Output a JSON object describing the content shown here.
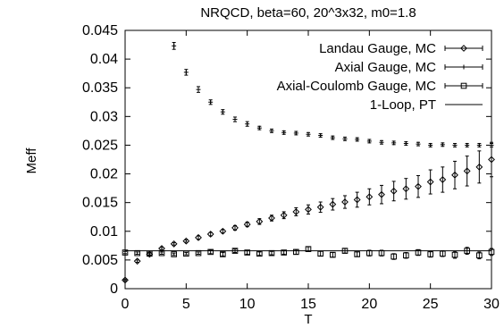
{
  "chart_data": {
    "type": "scatter",
    "title": "NRQCD, beta=60, 20^3x32, m0=1.8",
    "xlabel": "T",
    "ylabel": "Meff",
    "xlim": [
      0,
      30
    ],
    "ylim": [
      0,
      0.045
    ],
    "xticks": [
      "0",
      "5",
      "10",
      "15",
      "20",
      "25",
      "30"
    ],
    "yticks": [
      "0",
      "0.005",
      "0.01",
      "0.015",
      "0.02",
      "0.025",
      "0.03",
      "0.035",
      "0.04",
      "0.045"
    ],
    "grid": false,
    "legend_position": "top-right",
    "series": [
      {
        "name": "Landau Gauge, MC",
        "marker": "diamond",
        "x": [
          0,
          1,
          2,
          3,
          4,
          5,
          6,
          7,
          8,
          9,
          10,
          11,
          12,
          13,
          14,
          15,
          16,
          17,
          18,
          19,
          20,
          21,
          22,
          23,
          24,
          25,
          26,
          27,
          28,
          29,
          30
        ],
        "y": [
          0.0015,
          0.0048,
          0.006,
          0.007,
          0.0078,
          0.0083,
          0.0089,
          0.0095,
          0.01,
          0.0106,
          0.0112,
          0.0117,
          0.0123,
          0.0128,
          0.0134,
          0.0138,
          0.0142,
          0.0147,
          0.0151,
          0.0155,
          0.016,
          0.0164,
          0.017,
          0.0174,
          0.0178,
          0.0186,
          0.019,
          0.0198,
          0.0205,
          0.0212,
          0.0225
        ],
        "err": [
          0.0001,
          0.0002,
          0.0002,
          0.0002,
          0.0002,
          0.0002,
          0.0003,
          0.0003,
          0.0003,
          0.0004,
          0.0004,
          0.0005,
          0.0005,
          0.0006,
          0.0007,
          0.0008,
          0.0009,
          0.001,
          0.0011,
          0.0013,
          0.0014,
          0.0016,
          0.0017,
          0.0018,
          0.0019,
          0.0021,
          0.0022,
          0.0024,
          0.0026,
          0.0028,
          0.003
        ]
      },
      {
        "name": "Axial Gauge, MC",
        "marker": "plus",
        "x": [
          4,
          5,
          6,
          7,
          8,
          9,
          10,
          11,
          12,
          13,
          14,
          15,
          16,
          17,
          18,
          19,
          20,
          21,
          22,
          23,
          24,
          25,
          26,
          27,
          28,
          29,
          30
        ],
        "y": [
          0.0423,
          0.0377,
          0.0347,
          0.0325,
          0.0308,
          0.0295,
          0.0287,
          0.028,
          0.0275,
          0.0272,
          0.0271,
          0.0269,
          0.0267,
          0.0263,
          0.0261,
          0.026,
          0.0257,
          0.0255,
          0.0254,
          0.0253,
          0.0252,
          0.025,
          0.0251,
          0.025,
          0.025,
          0.025,
          0.025
        ],
        "err": [
          0.0006,
          0.0005,
          0.0005,
          0.0004,
          0.0004,
          0.0004,
          0.0004,
          0.0003,
          0.0003,
          0.0003,
          0.0003,
          0.0003,
          0.0003,
          0.0003,
          0.0003,
          0.0003,
          0.0003,
          0.0003,
          0.0003,
          0.0003,
          0.0003,
          0.0003,
          0.0003,
          0.0003,
          0.0003,
          0.0003,
          0.0003
        ]
      },
      {
        "name": "Axial-Coulomb Gauge, MC",
        "marker": "square",
        "x": [
          0,
          1,
          2,
          3,
          4,
          5,
          6,
          7,
          8,
          9,
          10,
          11,
          12,
          13,
          14,
          15,
          16,
          17,
          18,
          19,
          20,
          21,
          22,
          23,
          24,
          25,
          26,
          27,
          28,
          29,
          30
        ],
        "y": [
          0.0063,
          0.0062,
          0.0061,
          0.0062,
          0.006,
          0.0061,
          0.0062,
          0.0064,
          0.006,
          0.0066,
          0.0063,
          0.0061,
          0.0062,
          0.0063,
          0.0064,
          0.0069,
          0.0061,
          0.0059,
          0.0066,
          0.006,
          0.0062,
          0.0062,
          0.0056,
          0.0058,
          0.0063,
          0.006,
          0.0061,
          0.0059,
          0.0066,
          0.0058,
          0.0064
        ],
        "err": [
          0.0002,
          0.0002,
          0.0002,
          0.0002,
          0.0002,
          0.0002,
          0.0002,
          0.0003,
          0.0003,
          0.0003,
          0.0003,
          0.0003,
          0.0003,
          0.0003,
          0.0004,
          0.0004,
          0.0004,
          0.0004,
          0.0004,
          0.0004,
          0.0005,
          0.0005,
          0.0005,
          0.0005,
          0.0005,
          0.0005,
          0.0005,
          0.0006,
          0.0006,
          0.0006,
          0.0006
        ]
      },
      {
        "name": "1-Loop, PT",
        "marker": "line",
        "x": [
          0,
          30
        ],
        "y": [
          0.0066,
          0.0066
        ]
      }
    ]
  }
}
